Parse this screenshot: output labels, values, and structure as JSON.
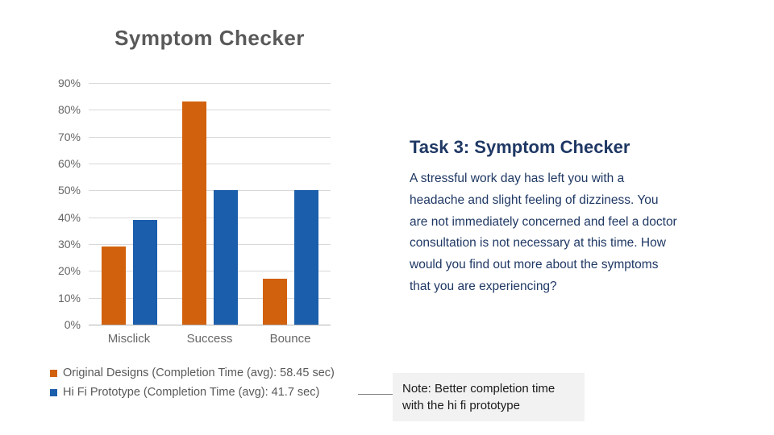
{
  "chart_data": {
    "type": "bar",
    "title": "Symptom Checker",
    "categories": [
      "Misclick",
      "Success",
      "Bounce"
    ],
    "series": [
      {
        "name": "Original Designs (Completion Time (avg): 58.45 sec)",
        "color": "#d2610d",
        "values": [
          29,
          83,
          17
        ]
      },
      {
        "name": "Hi Fi Prototype (Completion Time (avg): 41.7 sec)",
        "color": "#1b5eac",
        "values": [
          39,
          50,
          50
        ]
      }
    ],
    "xlabel": "",
    "ylabel": "",
    "ylim": [
      0,
      90
    ],
    "y_tick_step": 10,
    "y_tick_labels": [
      "0%",
      "10%",
      "20%",
      "30%",
      "40%",
      "50%",
      "60%",
      "70%",
      "80%",
      "90%"
    ],
    "grid": true,
    "legend_position": "bottom-left",
    "colors": {
      "title_text": "#595959",
      "axis_text": "#666666",
      "gridline": "#d9d9d9",
      "baseline": "#b3b3b3",
      "legend_text": "#595959"
    }
  },
  "task_panel": {
    "title": "Task 3: Symptom Checker",
    "body_lines": [
      "A stressful work day has left you with a",
      "headache and slight feeling of dizziness. You",
      "are not immediately concerned and feel a doctor",
      "consultation is not necessary at this time. How",
      "would you find out more about the symptoms",
      "that you are experiencing?"
    ],
    "text_color": "#1f3864"
  },
  "note": {
    "lines": [
      "Note: Better completion time",
      "with the hi fi prototype"
    ],
    "background": "#f2f2f2"
  }
}
